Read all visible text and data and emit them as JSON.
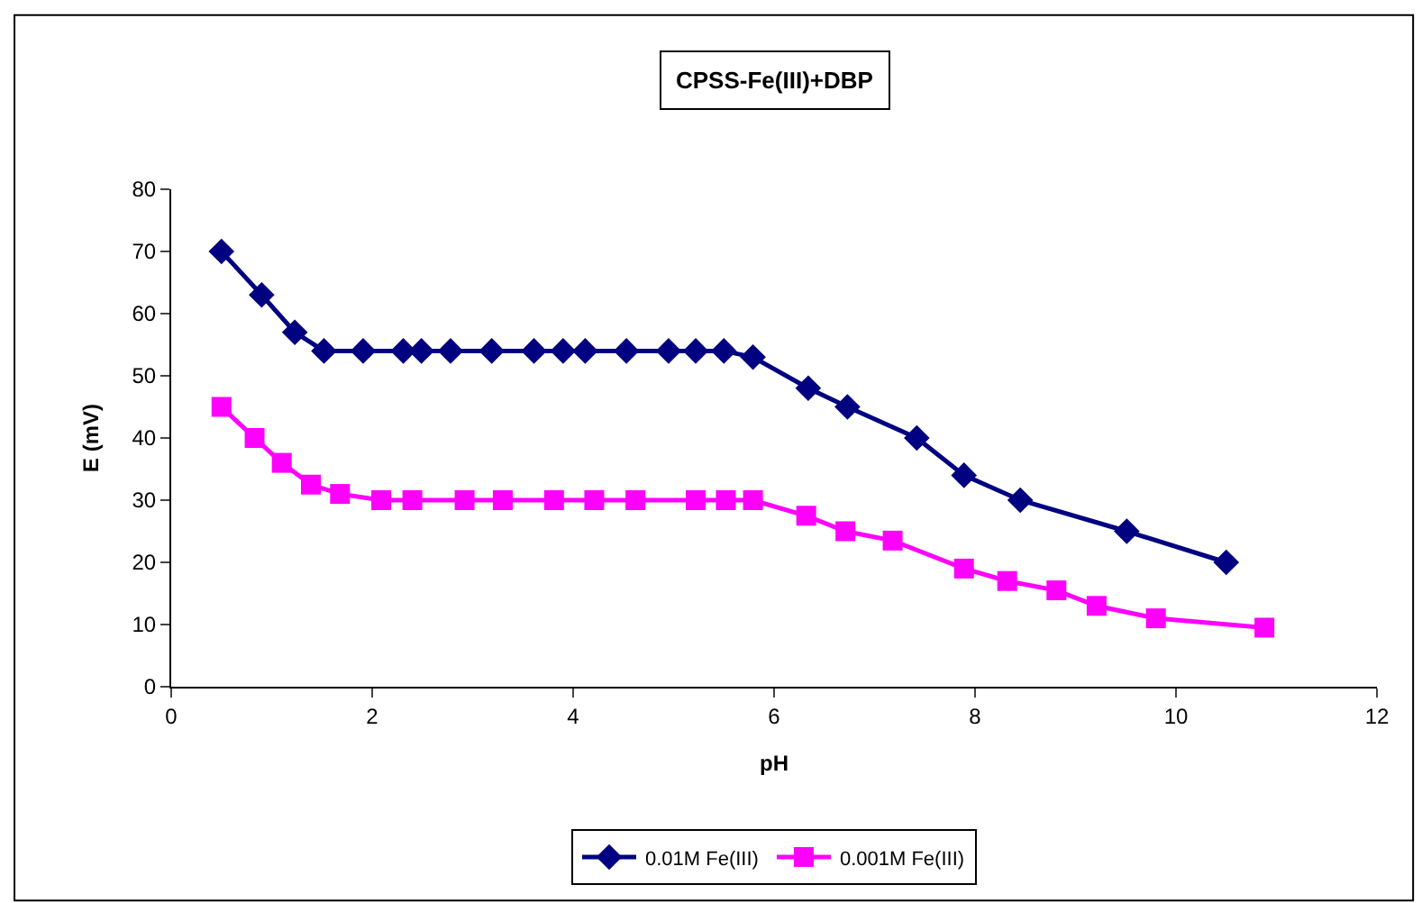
{
  "chart_data": {
    "type": "line",
    "title": "CPSS-Fe(III)+DBP",
    "xlabel": "pH",
    "ylabel": "E (mV)",
    "xlim": [
      0,
      12
    ],
    "xticks": [
      0,
      2,
      4,
      6,
      8,
      10,
      12
    ],
    "ylim": [
      0,
      80
    ],
    "yticks": [
      0,
      10,
      20,
      30,
      40,
      50,
      60,
      70,
      80
    ],
    "grid": false,
    "legend": "bottom",
    "series": [
      {
        "name": "0.01M Fe(III)",
        "color": "#000080",
        "marker": "diamond",
        "x": [
          0.5,
          0.9,
          1.23,
          1.52,
          1.91,
          2.31,
          2.49,
          2.78,
          3.19,
          3.61,
          3.9,
          4.12,
          4.53,
          4.95,
          5.22,
          5.5,
          5.79,
          6.34,
          6.73,
          7.42,
          7.89,
          8.45,
          9.51,
          10.5
        ],
        "values": [
          70,
          63,
          57,
          54,
          54,
          54,
          54,
          54,
          54,
          54,
          54,
          54,
          54,
          54,
          54,
          54,
          53,
          48,
          45,
          40,
          34,
          30,
          25,
          20
        ]
      },
      {
        "name": "0.001M Fe(III)",
        "color": "#ff00ff",
        "marker": "square",
        "x": [
          0.5,
          0.83,
          1.1,
          1.39,
          1.68,
          2.09,
          2.4,
          2.92,
          3.3,
          3.81,
          4.21,
          4.62,
          5.22,
          5.52,
          5.79,
          6.32,
          6.71,
          7.18,
          7.89,
          8.32,
          8.81,
          9.21,
          9.8,
          10.88
        ],
        "values": [
          45,
          40,
          36,
          32.5,
          31,
          30,
          30,
          30,
          30,
          30,
          30,
          30,
          30,
          30,
          30,
          27.5,
          25,
          23.5,
          19,
          17,
          15.5,
          13,
          11,
          9.5
        ]
      }
    ]
  }
}
